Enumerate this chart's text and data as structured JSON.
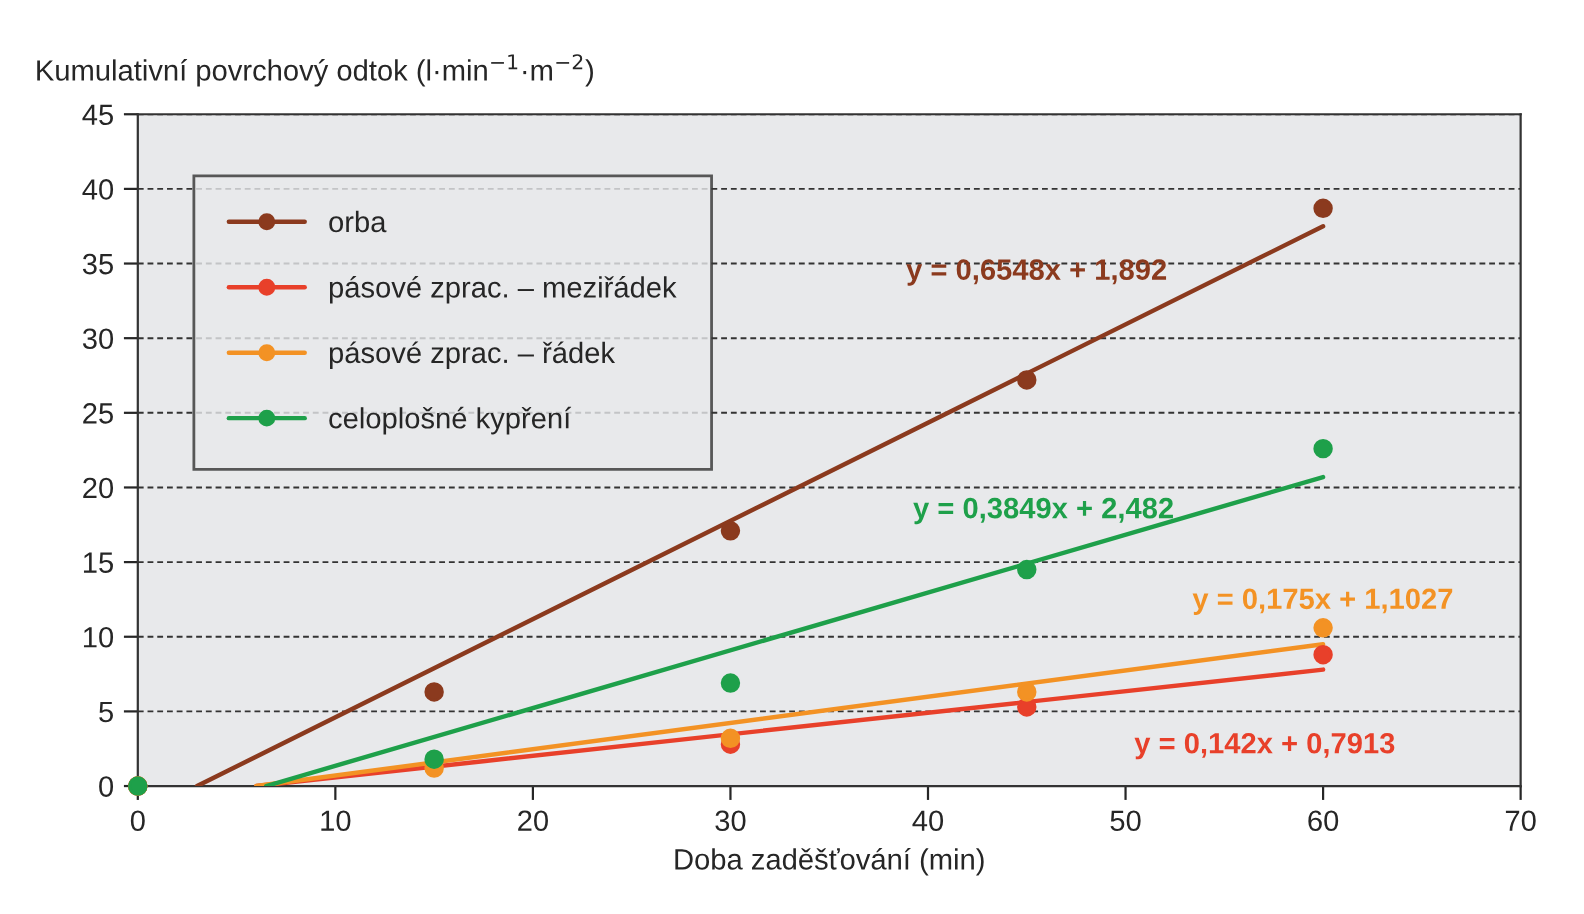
{
  "chart_data": {
    "type": "scatter",
    "ylabel": "Kumulativní povrchový odtok (l·min$^{−1}$·m$^{−2}$)",
    "xlabel": "Doba zaděšťování (min)",
    "xlim": [
      0,
      70
    ],
    "xticks": [
      0,
      10,
      20,
      30,
      40,
      50,
      60,
      70
    ],
    "ylim": [
      0,
      45
    ],
    "yticks": [
      0,
      5,
      10,
      15,
      20,
      25,
      30,
      35,
      40,
      45
    ],
    "grid": "y",
    "legend": "top left",
    "marker": "circle",
    "series": [
      {
        "name": "orba",
        "color": "#8b3a1e",
        "x": [
          0,
          15,
          30,
          45,
          60
        ],
        "values": [
          0,
          6.3,
          17.1,
          27.2,
          38.7
        ]
      },
      {
        "name": "pásové zprac. – meziřádek",
        "color": "#e8402a",
        "x": [
          0,
          15,
          30,
          45,
          60
        ],
        "values": [
          0,
          null,
          2.8,
          5.3,
          8.8
        ]
      },
      {
        "name": "pásové zprac. – řádek",
        "color": "#f39224",
        "x": [
          0,
          15,
          30,
          45,
          60
        ],
        "values": [
          0,
          1.2,
          3.2,
          6.3,
          10.6
        ]
      },
      {
        "name": "celoplošné kypření",
        "color": "#1ea04a",
        "x": [
          0,
          15,
          30,
          45,
          60
        ],
        "values": [
          0,
          1.8,
          6.9,
          14.5,
          22.6
        ]
      },
      {
        "type": "line",
        "marker": "none",
        "color": "#8b3a1e",
        "x": [
          3,
          60
        ],
        "values": [
          0,
          37.5
        ]
      },
      {
        "type": "line",
        "marker": "none",
        "color": "#e8402a",
        "x": [
          6,
          60
        ],
        "values": [
          0,
          7.8
        ]
      },
      {
        "type": "line",
        "marker": "none",
        "color": "#f39224",
        "x": [
          6,
          60
        ],
        "values": [
          0,
          9.5
        ]
      },
      {
        "type": "line",
        "marker": "none",
        "color": "#1ea04a",
        "x": [
          6.5,
          60
        ],
        "values": [
          0,
          20.7
        ]
      }
    ],
    "annotations": [
      "y = 0,6548x + 1,892",
      "y = 0,142x + 0,7913",
      "y = 0,175x + 1,1027",
      "y = 0,3849x + 2,482"
    ]
  }
}
